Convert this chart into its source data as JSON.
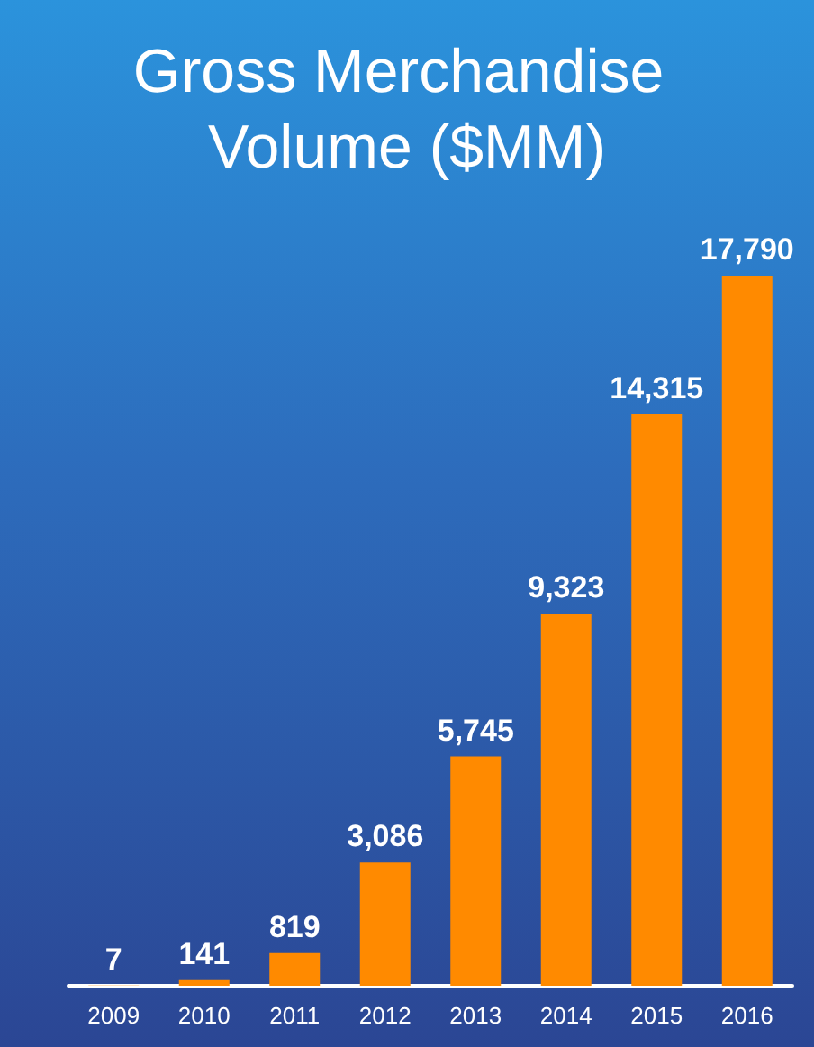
{
  "chart_data": {
    "type": "bar",
    "title": "Gross Merchandise Volume ($MM)",
    "categories": [
      "2009",
      "2010",
      "2011",
      "2012",
      "2013",
      "2014",
      "2015",
      "2016"
    ],
    "values": [
      7,
      141,
      819,
      3086,
      5745,
      9323,
      14315,
      17790
    ],
    "value_labels": [
      "7",
      "141",
      "819",
      "3,086",
      "5,745",
      "9,323",
      "14,315",
      "17,790"
    ],
    "color": "#ff8a00"
  }
}
